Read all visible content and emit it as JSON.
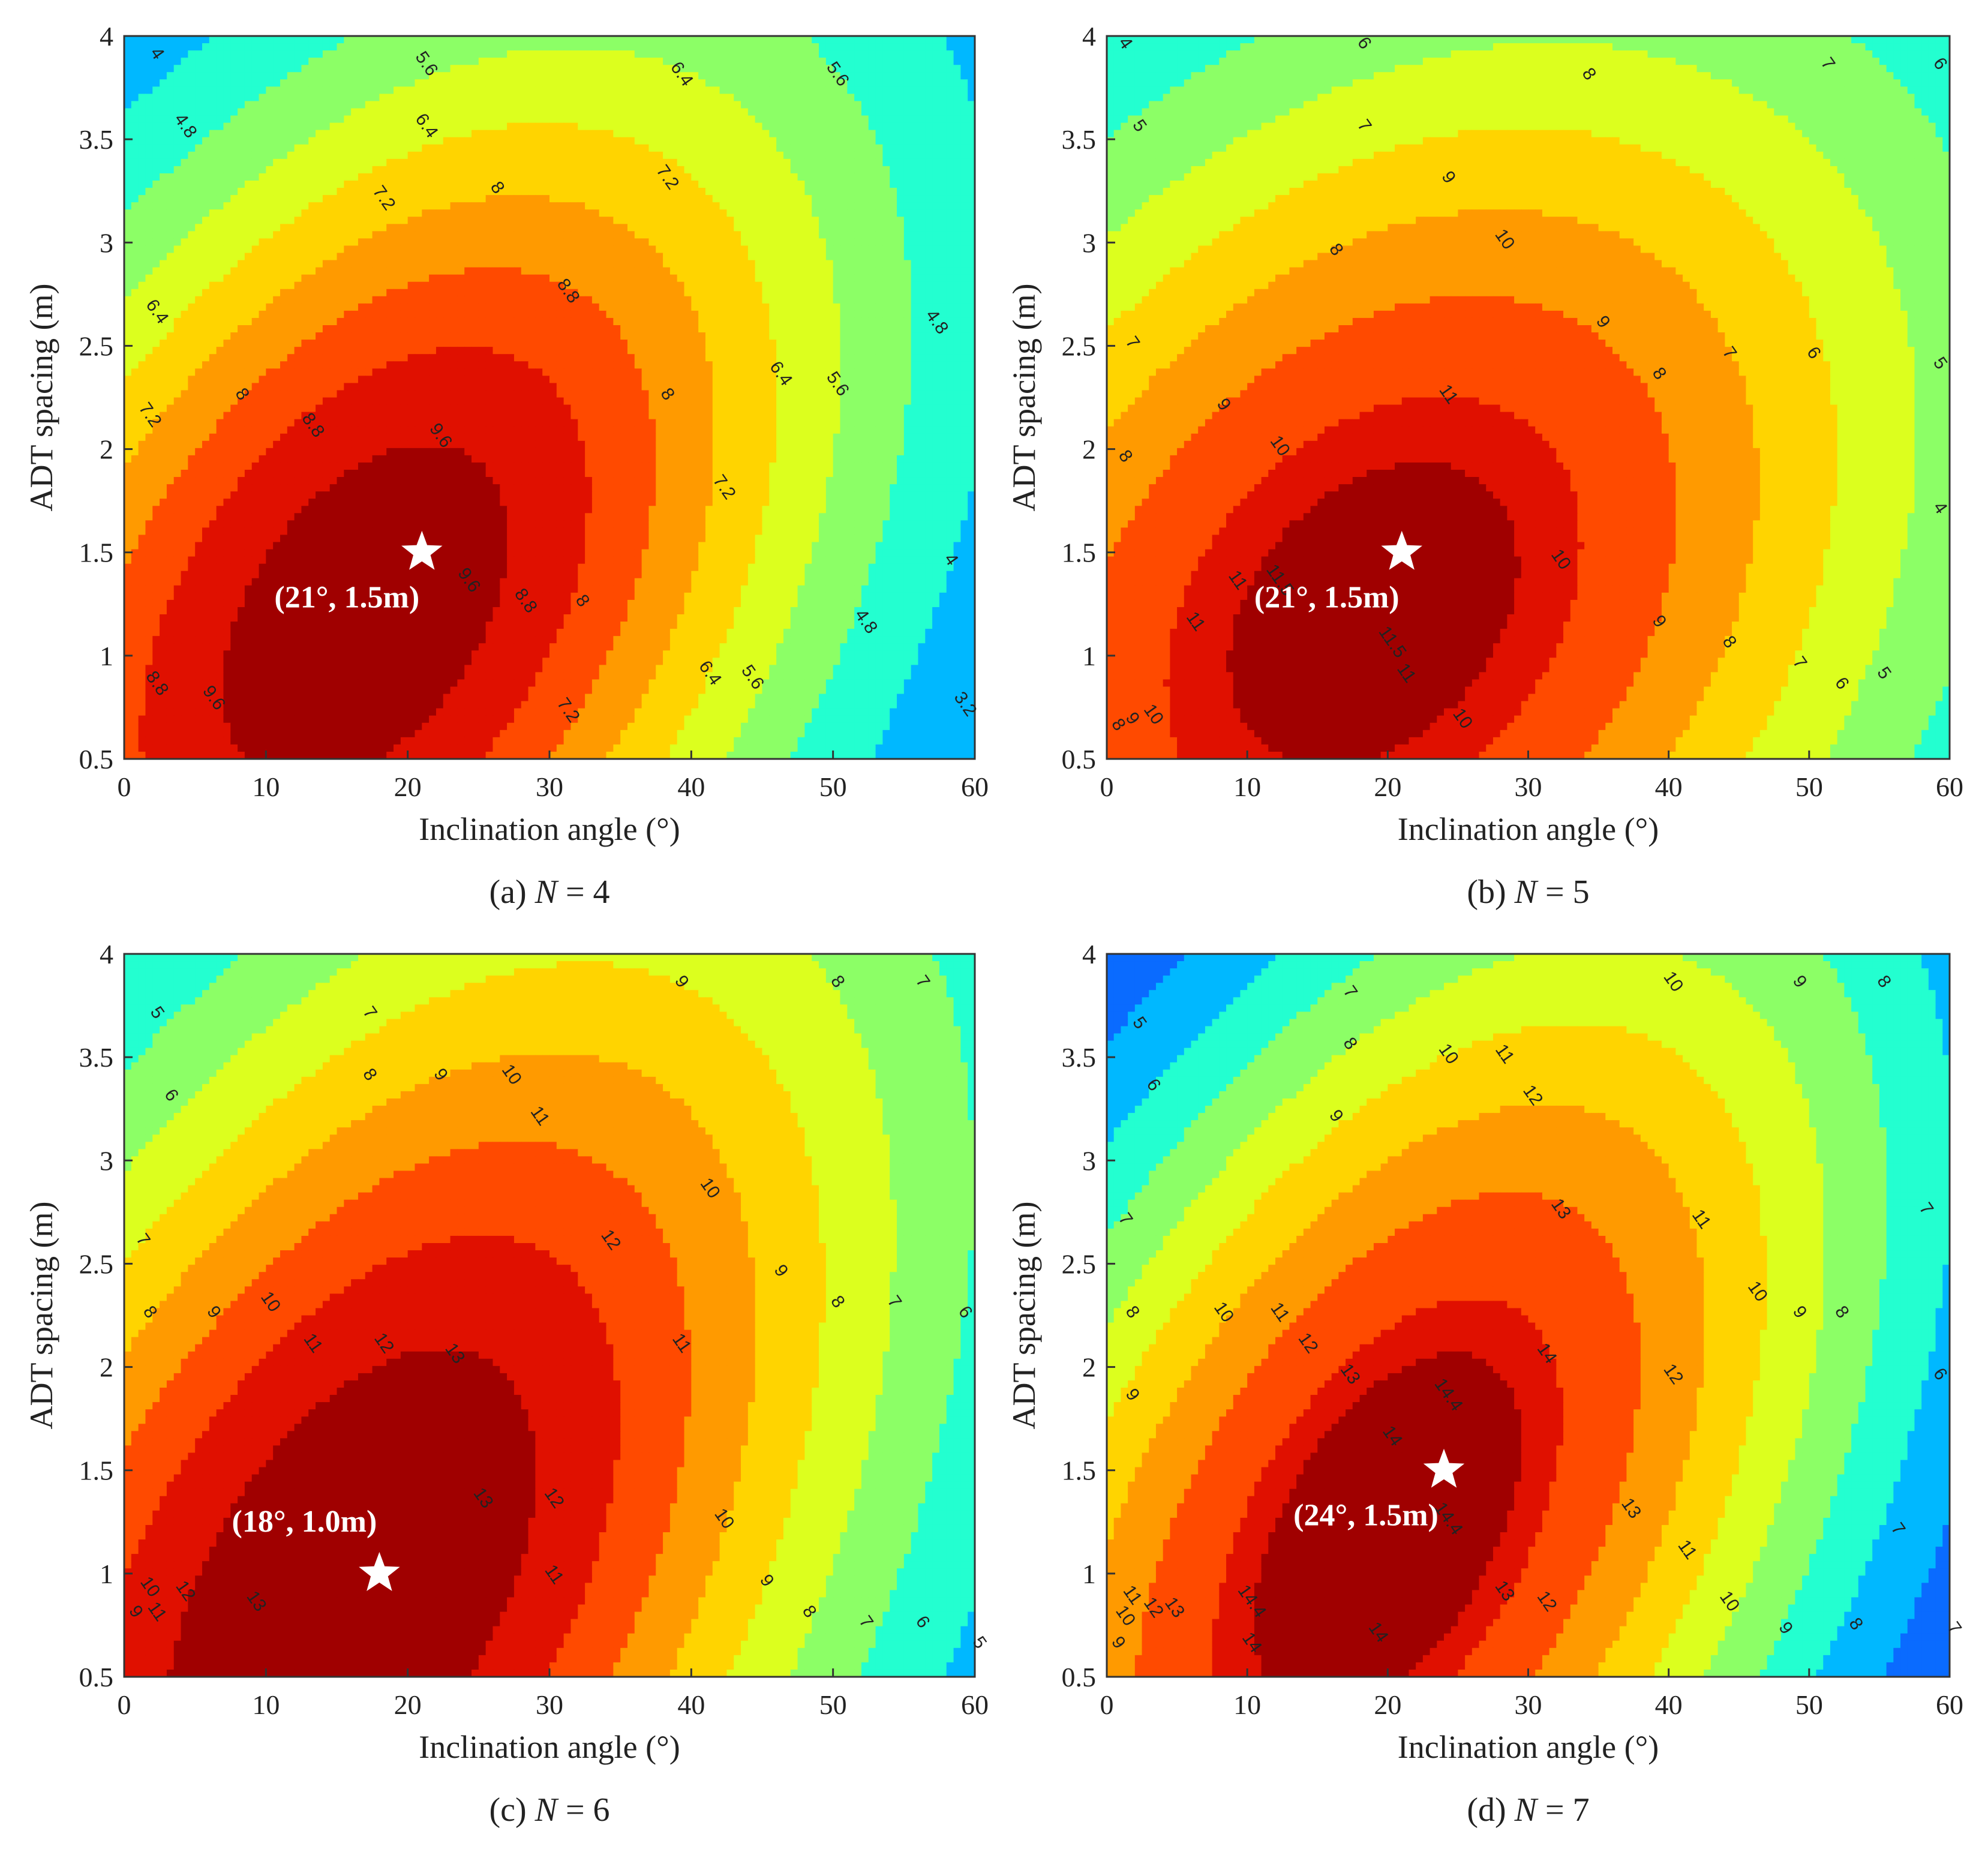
{
  "chart_data": [
    {
      "id": "a",
      "type": "heatmap",
      "subtype": "filled-contour",
      "caption": "(a) N = 4",
      "caption_prefix": "(a)",
      "caption_var": "N",
      "caption_eq": " = 4",
      "xlabel": "Inclination angle (°)",
      "ylabel": "ADT spacing (m)",
      "xlim": [
        0,
        60
      ],
      "ylim": [
        0.5,
        4
      ],
      "xticks": [
        "0",
        "10",
        "20",
        "30",
        "40",
        "50",
        "60"
      ],
      "yticks": [
        "0.5",
        "1",
        "1.5",
        "2",
        "2.5",
        "3",
        "3.5",
        "4"
      ],
      "levels": [
        3.2,
        4,
        4.8,
        5.6,
        6.4,
        7.2,
        8,
        8.8,
        9.6
      ],
      "optimum": {
        "x": 21,
        "y": 1.5,
        "label": "(21°, 1.5m)"
      },
      "peak": {
        "x": 17,
        "y": 1.2,
        "value": 10.2,
        "sx": 11,
        "sy": 0.9,
        "rot": 0.8
      },
      "contour_labels": [
        {
          "x": 2,
          "y": 3.9,
          "text": "4"
        },
        {
          "x": 4,
          "y": 3.55,
          "text": "4.8"
        },
        {
          "x": 21,
          "y": 3.85,
          "text": "5.6"
        },
        {
          "x": 21,
          "y": 3.55,
          "text": "6.4"
        },
        {
          "x": 18,
          "y": 3.2,
          "text": "7.2"
        },
        {
          "x": 26,
          "y": 3.25,
          "text": "8"
        },
        {
          "x": 39,
          "y": 3.8,
          "text": "6.4"
        },
        {
          "x": 38,
          "y": 3.3,
          "text": "7.2"
        },
        {
          "x": 50,
          "y": 3.8,
          "text": "5.6"
        },
        {
          "x": 2,
          "y": 2.65,
          "text": "6.4"
        },
        {
          "x": 31,
          "y": 2.75,
          "text": "8.8"
        },
        {
          "x": 57,
          "y": 2.6,
          "text": "4.8"
        },
        {
          "x": 1.5,
          "y": 2.15,
          "text": "7.2"
        },
        {
          "x": 8,
          "y": 2.25,
          "text": "8"
        },
        {
          "x": 13,
          "y": 2.1,
          "text": "8.8"
        },
        {
          "x": 22,
          "y": 2.05,
          "text": "9.6"
        },
        {
          "x": 38,
          "y": 2.25,
          "text": "8"
        },
        {
          "x": 46,
          "y": 2.35,
          "text": "6.4"
        },
        {
          "x": 50,
          "y": 2.3,
          "text": "5.6"
        },
        {
          "x": 42,
          "y": 1.8,
          "text": "7.2"
        },
        {
          "x": 24,
          "y": 1.35,
          "text": "9.6"
        },
        {
          "x": 28,
          "y": 1.25,
          "text": "8.8"
        },
        {
          "x": 32,
          "y": 1.25,
          "text": "8"
        },
        {
          "x": 58,
          "y": 1.45,
          "text": "4"
        },
        {
          "x": 52,
          "y": 1.15,
          "text": "4.8"
        },
        {
          "x": 2,
          "y": 0.85,
          "text": "8.8"
        },
        {
          "x": 6,
          "y": 0.78,
          "text": "9.6"
        },
        {
          "x": 31,
          "y": 0.72,
          "text": "7.2"
        },
        {
          "x": 41,
          "y": 0.9,
          "text": "6.4"
        },
        {
          "x": 44,
          "y": 0.88,
          "text": "5.6"
        },
        {
          "x": 59,
          "y": 0.75,
          "text": "3.2"
        }
      ]
    },
    {
      "id": "b",
      "type": "heatmap",
      "subtype": "filled-contour",
      "caption": "(b) N = 5",
      "caption_prefix": "(b)",
      "caption_var": "N",
      "caption_eq": " = 5",
      "xlabel": "Inclination angle (°)",
      "ylabel": "ADT spacing (m)",
      "xlim": [
        0,
        60
      ],
      "ylim": [
        0.5,
        4
      ],
      "xticks": [
        "0",
        "10",
        "20",
        "30",
        "40",
        "50",
        "60"
      ],
      "yticks": [
        "0.5",
        "1",
        "1.5",
        "2",
        "2.5",
        "3",
        "3.5",
        "4"
      ],
      "levels": [
        4,
        5,
        6,
        7,
        8,
        9,
        10,
        11,
        11.5
      ],
      "optimum": {
        "x": 21,
        "y": 1.5,
        "label": "(21°, 1.5m)"
      },
      "peak": {
        "x": 19,
        "y": 1.2,
        "value": 12,
        "sx": 14,
        "sy": 1.0,
        "rot": 0.6
      },
      "contour_labels": [
        {
          "x": 1,
          "y": 3.95,
          "text": "4"
        },
        {
          "x": 18,
          "y": 3.95,
          "text": "6"
        },
        {
          "x": 34,
          "y": 3.8,
          "text": "8"
        },
        {
          "x": 51,
          "y": 3.85,
          "text": "7"
        },
        {
          "x": 59,
          "y": 3.85,
          "text": "6"
        },
        {
          "x": 2,
          "y": 3.55,
          "text": "5"
        },
        {
          "x": 18,
          "y": 3.55,
          "text": "7"
        },
        {
          "x": 16,
          "y": 2.95,
          "text": "8"
        },
        {
          "x": 24,
          "y": 3.3,
          "text": "9"
        },
        {
          "x": 28,
          "y": 3.0,
          "text": "10"
        },
        {
          "x": 1.5,
          "y": 2.5,
          "text": "7"
        },
        {
          "x": 35,
          "y": 2.6,
          "text": "9"
        },
        {
          "x": 39,
          "y": 2.35,
          "text": "8"
        },
        {
          "x": 44,
          "y": 2.45,
          "text": "7"
        },
        {
          "x": 50,
          "y": 2.45,
          "text": "6"
        },
        {
          "x": 59,
          "y": 2.4,
          "text": "5"
        },
        {
          "x": 8,
          "y": 2.2,
          "text": "9"
        },
        {
          "x": 12,
          "y": 2.0,
          "text": "10"
        },
        {
          "x": 24,
          "y": 2.25,
          "text": "11"
        },
        {
          "x": 1,
          "y": 1.95,
          "text": "8"
        },
        {
          "x": 59,
          "y": 1.7,
          "text": "4"
        },
        {
          "x": 9,
          "y": 1.35,
          "text": "11"
        },
        {
          "x": 12,
          "y": 1.35,
          "text": "11.5"
        },
        {
          "x": 32,
          "y": 1.45,
          "text": "10"
        },
        {
          "x": 6,
          "y": 1.15,
          "text": "11"
        },
        {
          "x": 20,
          "y": 1.05,
          "text": "11.5"
        },
        {
          "x": 21,
          "y": 0.9,
          "text": "11"
        },
        {
          "x": 39,
          "y": 1.15,
          "text": "9"
        },
        {
          "x": 44,
          "y": 1.05,
          "text": "8"
        },
        {
          "x": 49,
          "y": 0.95,
          "text": "7"
        },
        {
          "x": 52,
          "y": 0.85,
          "text": "6"
        },
        {
          "x": 55,
          "y": 0.9,
          "text": "5"
        },
        {
          "x": 0.5,
          "y": 0.65,
          "text": "8"
        },
        {
          "x": 1.5,
          "y": 0.68,
          "text": "9"
        },
        {
          "x": 3,
          "y": 0.7,
          "text": "10"
        },
        {
          "x": 25,
          "y": 0.68,
          "text": "10"
        }
      ]
    },
    {
      "id": "c",
      "type": "heatmap",
      "subtype": "filled-contour",
      "caption": "(c) N = 6",
      "caption_prefix": "(c)",
      "caption_var": "N",
      "caption_eq": " = 6",
      "xlabel": "Inclination angle (°)",
      "ylabel": "ADT spacing (m)",
      "xlim": [
        0,
        60
      ],
      "ylim": [
        0.5,
        4
      ],
      "xticks": [
        "0",
        "10",
        "20",
        "30",
        "40",
        "50",
        "60"
      ],
      "yticks": [
        "0.5",
        "1",
        "1.5",
        "2",
        "2.5",
        "3",
        "3.5",
        "4"
      ],
      "levels": [
        5,
        6,
        7,
        8,
        9,
        10,
        11,
        12,
        13
      ],
      "optimum": {
        "x": 18,
        "y": 1.0,
        "label": "(18°, 1.0m)"
      },
      "peak": {
        "x": 16,
        "y": 0.9,
        "value": 14,
        "sx": 12,
        "sy": 1.1,
        "rot": 0.9
      },
      "contour_labels": [
        {
          "x": 2,
          "y": 3.7,
          "text": "5"
        },
        {
          "x": 3,
          "y": 3.3,
          "text": "6"
        },
        {
          "x": 17,
          "y": 3.7,
          "text": "7"
        },
        {
          "x": 17,
          "y": 3.4,
          "text": "8"
        },
        {
          "x": 22,
          "y": 3.4,
          "text": "9"
        },
        {
          "x": 27,
          "y": 3.4,
          "text": "10"
        },
        {
          "x": 39,
          "y": 3.85,
          "text": "9"
        },
        {
          "x": 50,
          "y": 3.85,
          "text": "8"
        },
        {
          "x": 56,
          "y": 3.85,
          "text": "7"
        },
        {
          "x": 29,
          "y": 3.2,
          "text": "11"
        },
        {
          "x": 41,
          "y": 2.85,
          "text": "10"
        },
        {
          "x": 1,
          "y": 2.6,
          "text": "7"
        },
        {
          "x": 34,
          "y": 2.6,
          "text": "12"
        },
        {
          "x": 46,
          "y": 2.45,
          "text": "9"
        },
        {
          "x": 1.5,
          "y": 2.25,
          "text": "8"
        },
        {
          "x": 6,
          "y": 2.25,
          "text": "9"
        },
        {
          "x": 10,
          "y": 2.3,
          "text": "10"
        },
        {
          "x": 50,
          "y": 2.3,
          "text": "8"
        },
        {
          "x": 54,
          "y": 2.3,
          "text": "7"
        },
        {
          "x": 59,
          "y": 2.25,
          "text": "6"
        },
        {
          "x": 13,
          "y": 2.1,
          "text": "11"
        },
        {
          "x": 18,
          "y": 2.1,
          "text": "12"
        },
        {
          "x": 23,
          "y": 2.05,
          "text": "13"
        },
        {
          "x": 39,
          "y": 2.1,
          "text": "11"
        },
        {
          "x": 25,
          "y": 1.35,
          "text": "13"
        },
        {
          "x": 30,
          "y": 1.35,
          "text": "12"
        },
        {
          "x": 42,
          "y": 1.25,
          "text": "10"
        },
        {
          "x": 1.5,
          "y": 0.92,
          "text": "10"
        },
        {
          "x": 4,
          "y": 0.9,
          "text": "12"
        },
        {
          "x": 30,
          "y": 0.98,
          "text": "11"
        },
        {
          "x": 45,
          "y": 0.95,
          "text": "9"
        },
        {
          "x": 0.5,
          "y": 0.8,
          "text": "9"
        },
        {
          "x": 2,
          "y": 0.8,
          "text": "11"
        },
        {
          "x": 9,
          "y": 0.85,
          "text": "13"
        },
        {
          "x": 48,
          "y": 0.8,
          "text": "8"
        },
        {
          "x": 52,
          "y": 0.75,
          "text": "7"
        },
        {
          "x": 56,
          "y": 0.75,
          "text": "6"
        },
        {
          "x": 60,
          "y": 0.65,
          "text": "5"
        }
      ]
    },
    {
      "id": "d",
      "type": "heatmap",
      "subtype": "filled-contour",
      "caption": "(d) N = 7",
      "caption_prefix": "(d)",
      "caption_var": "N",
      "caption_eq": " = 7",
      "xlabel": "Inclination angle (°)",
      "ylabel": "ADT spacing (m)",
      "xlim": [
        0,
        60
      ],
      "ylim": [
        0.5,
        4
      ],
      "xticks": [
        "0",
        "10",
        "20",
        "30",
        "40",
        "50",
        "60"
      ],
      "yticks": [
        "0.5",
        "1",
        "1.5",
        "2",
        "2.5",
        "3",
        "3.5",
        "4"
      ],
      "levels": [
        5,
        6,
        7,
        8,
        9,
        10,
        11,
        12,
        13,
        14,
        14.4
      ],
      "optimum": {
        "x": 24,
        "y": 1.5,
        "label": "(24°, 1.5m)"
      },
      "peak": {
        "x": 20,
        "y": 1.2,
        "value": 15,
        "sx": 12,
        "sy": 1.1,
        "rot": 0.9
      },
      "contour_labels": [
        {
          "x": 2,
          "y": 3.65,
          "text": "5"
        },
        {
          "x": 3,
          "y": 3.35,
          "text": "6"
        },
        {
          "x": 17,
          "y": 3.8,
          "text": "7"
        },
        {
          "x": 17,
          "y": 3.55,
          "text": "8"
        },
        {
          "x": 16,
          "y": 3.2,
          "text": "9"
        },
        {
          "x": 24,
          "y": 3.5,
          "text": "10"
        },
        {
          "x": 28,
          "y": 3.5,
          "text": "11"
        },
        {
          "x": 30,
          "y": 3.3,
          "text": "12"
        },
        {
          "x": 40,
          "y": 3.85,
          "text": "10"
        },
        {
          "x": 49,
          "y": 3.85,
          "text": "9"
        },
        {
          "x": 55,
          "y": 3.85,
          "text": "8"
        },
        {
          "x": 1,
          "y": 2.7,
          "text": "7"
        },
        {
          "x": 32,
          "y": 2.75,
          "text": "13"
        },
        {
          "x": 42,
          "y": 2.7,
          "text": "11"
        },
        {
          "x": 58,
          "y": 2.75,
          "text": "7"
        },
        {
          "x": 1.5,
          "y": 2.25,
          "text": "8"
        },
        {
          "x": 8,
          "y": 2.25,
          "text": "10"
        },
        {
          "x": 12,
          "y": 2.25,
          "text": "11"
        },
        {
          "x": 46,
          "y": 2.35,
          "text": "10"
        },
        {
          "x": 49,
          "y": 2.25,
          "text": "9"
        },
        {
          "x": 52,
          "y": 2.25,
          "text": "8"
        },
        {
          "x": 14,
          "y": 2.1,
          "text": "12"
        },
        {
          "x": 17,
          "y": 1.95,
          "text": "13"
        },
        {
          "x": 24,
          "y": 1.85,
          "text": "14.4"
        },
        {
          "x": 31,
          "y": 2.05,
          "text": "14"
        },
        {
          "x": 40,
          "y": 1.95,
          "text": "12"
        },
        {
          "x": 1.5,
          "y": 1.85,
          "text": "9"
        },
        {
          "x": 59,
          "y": 1.95,
          "text": "6"
        },
        {
          "x": 20,
          "y": 1.65,
          "text": "14"
        },
        {
          "x": 37,
          "y": 1.3,
          "text": "13"
        },
        {
          "x": 24,
          "y": 1.25,
          "text": "14.4"
        },
        {
          "x": 56,
          "y": 1.2,
          "text": "7"
        },
        {
          "x": 41,
          "y": 1.1,
          "text": "11"
        },
        {
          "x": 1.5,
          "y": 0.88,
          "text": "11"
        },
        {
          "x": 3,
          "y": 0.82,
          "text": "12"
        },
        {
          "x": 1,
          "y": 0.78,
          "text": "10"
        },
        {
          "x": 0.5,
          "y": 0.65,
          "text": "9"
        },
        {
          "x": 4.5,
          "y": 0.82,
          "text": "13"
        },
        {
          "x": 10,
          "y": 0.85,
          "text": "14.4"
        },
        {
          "x": 10,
          "y": 0.65,
          "text": "14"
        },
        {
          "x": 28,
          "y": 0.9,
          "text": "13"
        },
        {
          "x": 31,
          "y": 0.85,
          "text": "12"
        },
        {
          "x": 44,
          "y": 0.85,
          "text": "10"
        },
        {
          "x": 48,
          "y": 0.72,
          "text": "9"
        },
        {
          "x": 53,
          "y": 0.74,
          "text": "8"
        },
        {
          "x": 60,
          "y": 0.72,
          "text": "7"
        },
        {
          "x": 19,
          "y": 0.7,
          "text": "14"
        }
      ]
    }
  ]
}
